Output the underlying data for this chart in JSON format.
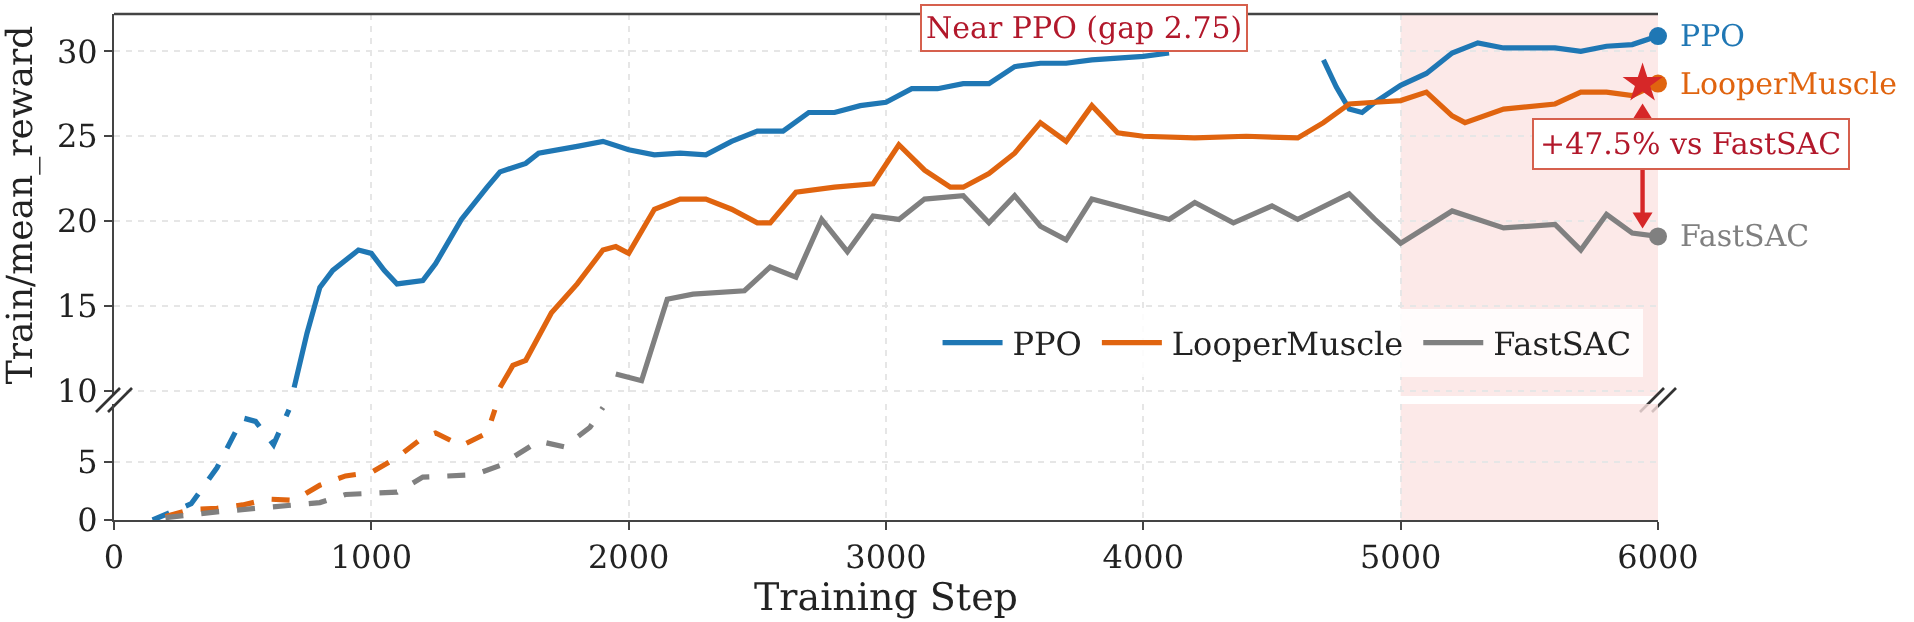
{
  "chart_data": [
    {
      "type": "line",
      "ylabel": "Train/mean_reward",
      "xlim": [
        0,
        6000
      ],
      "xticks": [
        0,
        1000,
        2000,
        3000,
        4000,
        5000,
        6000
      ],
      "ylim": [
        9.7,
        32.2
      ],
      "yticks": [
        10,
        15,
        20,
        25,
        30
      ],
      "tick_labels": "y",
      "grid": true,
      "legend": "bottom right",
      "line_style": "solid",
      "series": [
        {
          "name": "PPO",
          "color": "#1f77b4",
          "x": [
            700,
            750,
            800,
            850,
            950,
            1000,
            1050,
            1100,
            1200,
            1250,
            1350,
            1450,
            1500,
            1600,
            1650,
            1800,
            1900,
            2000,
            2100,
            2200,
            2300,
            2400,
            2500,
            2600,
            2700,
            2800,
            2900,
            3000,
            3100,
            3200,
            3300,
            3400,
            3500,
            3600,
            3700,
            3800,
            3900,
            4000,
            4100,
            4200,
            4300,
            4500,
            4700,
            4750,
            4800,
            4850,
            4900,
            5000,
            5100,
            5200,
            5300,
            5400,
            5500,
            5600,
            5700,
            5800,
            5900,
            6000
          ],
          "values": [
            10.2,
            13.4,
            16.1,
            17.1,
            18.3,
            18.1,
            17.1,
            16.3,
            16.5,
            17.5,
            20.1,
            22.0,
            22.9,
            23.4,
            24.0,
            24.4,
            24.7,
            24.2,
            23.9,
            24.0,
            23.9,
            24.7,
            25.3,
            25.3,
            26.4,
            26.4,
            26.8,
            27.0,
            27.8,
            27.8,
            28.1,
            28.1,
            29.1,
            29.3,
            29.3,
            29.5,
            29.6,
            29.7,
            29.9,
            null,
            null,
            null,
            29.5,
            27.9,
            26.6,
            26.4,
            27.0,
            28.0,
            28.7,
            29.9,
            30.5,
            30.2,
            30.2,
            30.2,
            30.0,
            30.3,
            30.4,
            30.9
          ]
        },
        {
          "name": "LooperMuscle",
          "color": "#e0640f",
          "x": [
            1500,
            1550,
            1600,
            1700,
            1800,
            1900,
            1950,
            2000,
            2100,
            2200,
            2300,
            2400,
            2500,
            2550,
            2650,
            2800,
            2950,
            3050,
            3150,
            3250,
            3300,
            3400,
            3500,
            3600,
            3700,
            3800,
            3900,
            4000,
            4200,
            4400,
            4600,
            4700,
            4800,
            4900,
            5000,
            5100,
            5200,
            5250,
            5400,
            5600,
            5700,
            5800,
            5900,
            6000
          ],
          "values": [
            10.2,
            11.5,
            11.8,
            14.6,
            16.3,
            18.3,
            18.5,
            18.1,
            20.7,
            21.3,
            21.3,
            20.7,
            19.9,
            19.9,
            21.7,
            22.0,
            22.2,
            24.5,
            23.0,
            22.0,
            22.0,
            22.8,
            24.0,
            25.8,
            24.7,
            26.8,
            25.2,
            25.0,
            24.9,
            25.0,
            24.9,
            25.8,
            26.9,
            27.0,
            27.1,
            27.6,
            26.2,
            25.8,
            26.6,
            26.9,
            27.6,
            27.6,
            27.4,
            28.1
          ]
        },
        {
          "name": "FastSAC",
          "color": "#808080",
          "x": [
            1950,
            2050,
            2150,
            2250,
            2450,
            2550,
            2650,
            2750,
            2850,
            2950,
            3050,
            3150,
            3300,
            3400,
            3500,
            3600,
            3700,
            3800,
            4000,
            4100,
            4200,
            4350,
            4500,
            4600,
            4800,
            4900,
            5000,
            5200,
            5400,
            5600,
            5700,
            5800,
            5900,
            6000
          ],
          "values": [
            11.0,
            10.6,
            15.4,
            15.7,
            15.9,
            17.3,
            16.7,
            20.1,
            18.2,
            20.3,
            20.1,
            21.3,
            21.5,
            19.9,
            21.5,
            19.7,
            18.9,
            21.3,
            20.5,
            20.1,
            21.1,
            19.9,
            20.9,
            20.1,
            21.6,
            20.1,
            18.7,
            20.6,
            19.6,
            19.8,
            18.3,
            20.4,
            19.3,
            19.1
          ]
        },
        {
          "type": "scatter",
          "marker": "circle",
          "color": "#1f77b4",
          "x": [
            6000
          ],
          "values": [
            30.9
          ]
        },
        {
          "type": "scatter",
          "marker": "circle",
          "color": "#e0640f",
          "x": [
            6000
          ],
          "values": [
            28.1
          ]
        },
        {
          "type": "scatter",
          "marker": "circle",
          "color": "#808080",
          "x": [
            6000
          ],
          "values": [
            19.1
          ]
        },
        {
          "type": "scatter",
          "marker": "star",
          "color": "#d62728",
          "x": [
            5940
          ],
          "values": [
            28.1
          ]
        }
      ],
      "bands": [
        {
          "axis": "x",
          "from": 5000,
          "to": 6000,
          "color": "#fbe4e2"
        }
      ],
      "annotations": [
        "Near PPO (gap 2.75)",
        "+47.5% vs FastSAC"
      ]
    },
    {
      "type": "line",
      "xlabel": "Training Step",
      "xlim": [
        0,
        6000
      ],
      "xticks": [
        0,
        1000,
        2000,
        3000,
        4000,
        5000,
        6000
      ],
      "ylim": [
        0,
        10
      ],
      "yticks": [
        0,
        5
      ],
      "grid": true,
      "line_style": "dashed",
      "series": [
        {
          "color": "#1f77b4",
          "x": [
            150,
            300,
            400,
            500,
            550,
            620,
            680
          ],
          "values": [
            0,
            1.4,
            4.5,
            8.8,
            8.5,
            6.5,
            9.5
          ]
        },
        {
          "color": "#e0640f",
          "x": [
            200,
            300,
            400,
            500,
            600,
            700,
            800,
            900,
            1000,
            1100,
            1200,
            1250,
            1350,
            1450,
            1480
          ],
          "values": [
            0.3,
            0.9,
            1.0,
            1.3,
            1.8,
            1.7,
            3.0,
            3.8,
            4.1,
            5.4,
            7.1,
            7.5,
            6.4,
            7.5,
            9.5
          ]
        },
        {
          "color": "#808080",
          "x": [
            200,
            400,
            600,
            800,
            900,
            1100,
            1200,
            1400,
            1500,
            1650,
            1750,
            1850,
            1900
          ],
          "values": [
            0.2,
            0.7,
            1.1,
            1.5,
            2.2,
            2.4,
            3.7,
            3.9,
            4.7,
            6.8,
            6.3,
            8.0,
            9.7
          ]
        }
      ],
      "bands": [
        {
          "axis": "x",
          "from": 5000,
          "to": 6000,
          "color": "#fbe4e2"
        }
      ]
    }
  ]
}
